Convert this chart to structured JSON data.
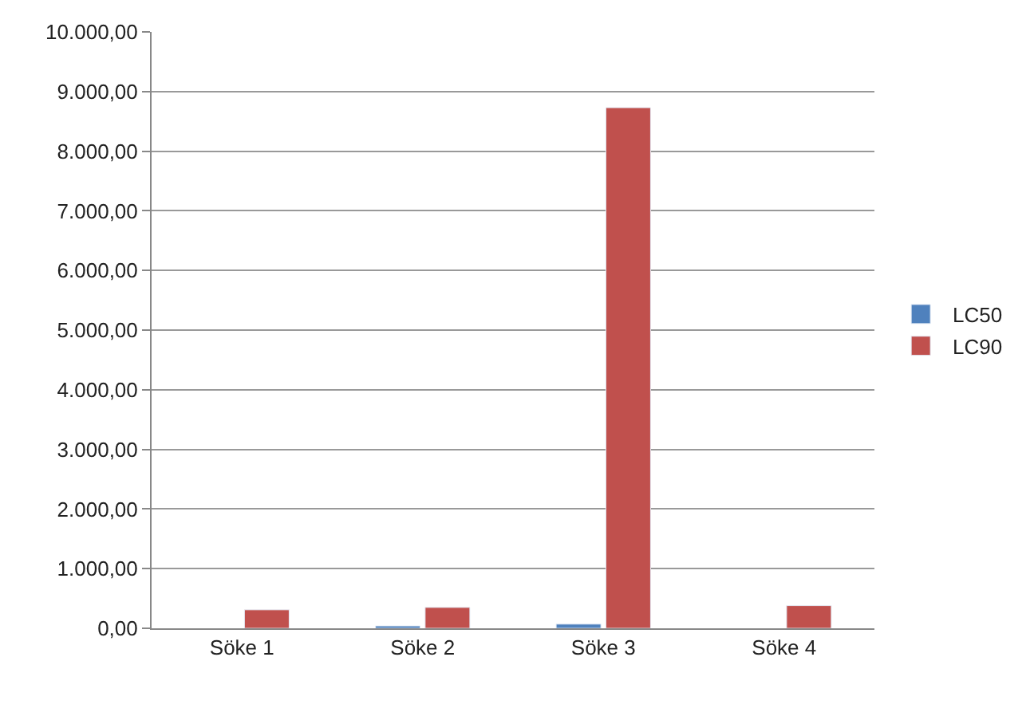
{
  "chart_data": {
    "type": "bar",
    "categories": [
      "Söke 1",
      "Söke 2",
      "Söke 3",
      "Söke 4"
    ],
    "series": [
      {
        "name": "LC50",
        "color": "#4f81bd",
        "values": [
          null,
          40,
          70,
          null
        ]
      },
      {
        "name": "LC90",
        "color": "#c0504d",
        "values": [
          310,
          350,
          8730,
          380
        ]
      }
    ],
    "ylim": [
      0,
      10000
    ],
    "yticks": [
      {
        "value": 0,
        "label": "0,00"
      },
      {
        "value": 1000,
        "label": "1.000,00"
      },
      {
        "value": 2000,
        "label": "2.000,00"
      },
      {
        "value": 3000,
        "label": "3.000,00"
      },
      {
        "value": 4000,
        "label": "4.000,00"
      },
      {
        "value": 5000,
        "label": "5.000,00"
      },
      {
        "value": 6000,
        "label": "6.000,00"
      },
      {
        "value": 7000,
        "label": "7.000,00"
      },
      {
        "value": 8000,
        "label": "8.000,00"
      },
      {
        "value": 9000,
        "label": "9.000,00"
      },
      {
        "value": 10000,
        "label": "10.000,00"
      }
    ],
    "grid": "y",
    "legend": "right"
  }
}
